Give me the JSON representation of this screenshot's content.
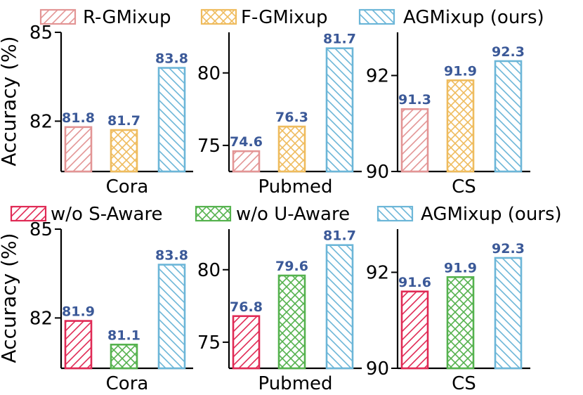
{
  "colors": {
    "r_gmixup": "#e39595",
    "f_gmixup": "#efbc5e",
    "agmixup": "#6cb6d8",
    "wo_s_aware": "#e02a55",
    "wo_u_aware": "#55b24e",
    "data_label": "#3b5998"
  },
  "chart_data": [
    {
      "type": "bar",
      "row": "top",
      "legend": [
        {
          "name": "R-GMixup",
          "color": "#e39595",
          "hatch": "slash"
        },
        {
          "name": "F-GMixup",
          "color": "#efbc5e",
          "hatch": "cross"
        },
        {
          "name": "AGMixup (ours)",
          "color": "#6cb6d8",
          "hatch": "backslash"
        }
      ],
      "ylabel": "Accuracy (%)",
      "panels": [
        {
          "dataset": "Cora",
          "ylim": [
            80.3,
            85
          ],
          "yticks": [
            82,
            85
          ],
          "values": [
            81.8,
            81.7,
            83.8
          ]
        },
        {
          "dataset": "Pubmed",
          "ylim": [
            73.2,
            82.8
          ],
          "yticks": [
            75,
            80
          ],
          "values": [
            74.6,
            76.3,
            81.7
          ]
        },
        {
          "dataset": "CS",
          "ylim": [
            90,
            92.9
          ],
          "yticks": [
            90,
            92
          ],
          "values": [
            91.3,
            91.9,
            92.3
          ]
        }
      ]
    },
    {
      "type": "bar",
      "row": "bottom",
      "legend": [
        {
          "name": "w/o S-Aware",
          "color": "#e02a55",
          "hatch": "slash"
        },
        {
          "name": "w/o U-Aware",
          "color": "#55b24e",
          "hatch": "cross"
        },
        {
          "name": "AGMixup (ours)",
          "color": "#6cb6d8",
          "hatch": "backslash"
        }
      ],
      "ylabel": "Accuracy (%)",
      "panels": [
        {
          "dataset": "Cora",
          "ylim": [
            80.3,
            85
          ],
          "yticks": [
            82,
            85
          ],
          "values": [
            81.9,
            81.1,
            83.8
          ]
        },
        {
          "dataset": "Pubmed",
          "ylim": [
            73.2,
            82.8
          ],
          "yticks": [
            75,
            80
          ],
          "values": [
            76.8,
            79.6,
            81.7
          ]
        },
        {
          "dataset": "CS",
          "ylim": [
            90,
            92.9
          ],
          "yticks": [
            90,
            92
          ],
          "values": [
            91.6,
            91.9,
            92.3
          ]
        }
      ]
    }
  ]
}
